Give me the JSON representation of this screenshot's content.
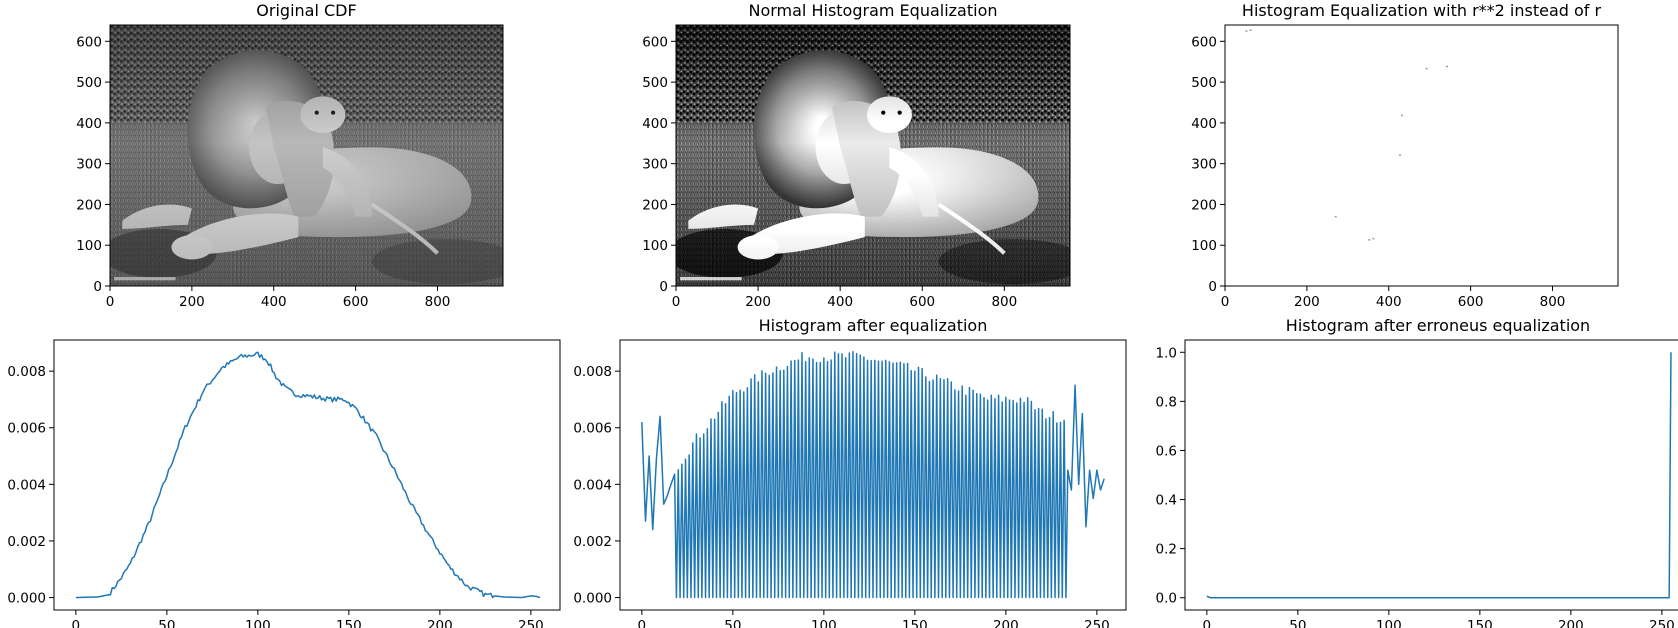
{
  "chart_data": [
    {
      "type": "image",
      "title": "Original CDF",
      "content": "grayscale photograph of a lion and a lion cub",
      "image_tone": "normal",
      "xlim": [
        0,
        960
      ],
      "ylim": [
        640,
        0
      ],
      "xticks": [
        0,
        200,
        400,
        600,
        800
      ],
      "yticks": [
        0,
        100,
        200,
        300,
        400,
        500,
        600
      ]
    },
    {
      "type": "image",
      "title": "Normal Histogram Equalization",
      "content": "contrast-enhanced grayscale photograph of a lion and a lion cub",
      "image_tone": "equalized",
      "xlim": [
        0,
        960
      ],
      "ylim": [
        640,
        0
      ],
      "xticks": [
        0,
        200,
        400,
        600,
        800
      ],
      "yticks": [
        0,
        100,
        200,
        300,
        400,
        500,
        600
      ]
    },
    {
      "type": "image",
      "title": "Histogram Equalization with r**2 instead of r",
      "content": "almost entirely white image with a few faint dark specks",
      "image_tone": "washed-out",
      "xlim": [
        0,
        960
      ],
      "ylim": [
        640,
        0
      ],
      "xticks": [
        0,
        200,
        400,
        600,
        800
      ],
      "yticks": [
        0,
        100,
        200,
        300,
        400,
        500,
        600
      ],
      "specks": [
        [
          50,
          627
        ],
        [
          60,
          629
        ],
        [
          268,
          172
        ],
        [
          350,
          115
        ],
        [
          360,
          118
        ],
        [
          425,
          323
        ],
        [
          430,
          420
        ],
        [
          490,
          535
        ],
        [
          540,
          540
        ]
      ]
    },
    {
      "type": "line",
      "title": "",
      "color": "#1f77b4",
      "xlim": [
        -12,
        266
      ],
      "ylim": [
        -0.00044,
        0.0091
      ],
      "xticks": [
        0,
        50,
        100,
        150,
        200,
        250
      ],
      "yticks": [
        0.0,
        0.002,
        0.004,
        0.006,
        0.008
      ],
      "ytick_labels": [
        "0.000",
        "0.002",
        "0.004",
        "0.006",
        "0.008"
      ],
      "x_range": [
        0,
        255
      ],
      "control_points": [
        [
          0,
          0.0
        ],
        [
          12,
          2e-05
        ],
        [
          18,
          0.0001
        ],
        [
          25,
          0.0007
        ],
        [
          30,
          0.0012
        ],
        [
          40,
          0.0026
        ],
        [
          50,
          0.0043
        ],
        [
          60,
          0.006
        ],
        [
          70,
          0.0073
        ],
        [
          80,
          0.0081
        ],
        [
          90,
          0.0085
        ],
        [
          100,
          0.0086
        ],
        [
          105,
          0.0084
        ],
        [
          110,
          0.0078
        ],
        [
          115,
          0.0074
        ],
        [
          120,
          0.0072
        ],
        [
          130,
          0.0071
        ],
        [
          140,
          0.007
        ],
        [
          148,
          0.007
        ],
        [
          155,
          0.0066
        ],
        [
          165,
          0.0057
        ],
        [
          175,
          0.0045
        ],
        [
          185,
          0.0032
        ],
        [
          195,
          0.0021
        ],
        [
          205,
          0.0011
        ],
        [
          215,
          0.0004
        ],
        [
          225,
          0.0001
        ],
        [
          235,
          2e-05
        ],
        [
          245,
          0.0
        ],
        [
          250,
          6e-05
        ],
        [
          253,
          4e-05
        ],
        [
          255,
          0.0
        ]
      ],
      "noise": 9e-05
    },
    {
      "type": "line",
      "title": "Histogram after equalization",
      "color": "#1f77b4",
      "xlim": [
        -12,
        266
      ],
      "ylim": [
        -0.00044,
        0.0091
      ],
      "xticks": [
        0,
        50,
        100,
        150,
        200,
        250
      ],
      "yticks": [
        0.0,
        0.002,
        0.004,
        0.006,
        0.008
      ],
      "ytick_labels": [
        "0.000",
        "0.002",
        "0.004",
        "0.006",
        "0.008"
      ],
      "leading_values": [
        [
          0,
          0.0062
        ],
        [
          2,
          0.0027
        ],
        [
          4,
          0.005
        ],
        [
          6,
          0.0024
        ],
        [
          8,
          0.0049
        ],
        [
          10,
          0.0064
        ],
        [
          12,
          0.0033
        ],
        [
          14,
          0.0036
        ],
        [
          16,
          0.004
        ]
      ],
      "comb_start": 18,
      "comb_end": 232,
      "comb_step": 2,
      "comb_peaks": [
        [
          18,
          0.0045
        ],
        [
          30,
          0.0056
        ],
        [
          50,
          0.0072
        ],
        [
          70,
          0.008
        ],
        [
          90,
          0.0085
        ],
        [
          100,
          0.0085
        ],
        [
          120,
          0.0085
        ],
        [
          140,
          0.0082
        ],
        [
          150,
          0.008
        ],
        [
          170,
          0.0075
        ],
        [
          190,
          0.007
        ],
        [
          210,
          0.007
        ],
        [
          220,
          0.0065
        ],
        [
          232,
          0.0063
        ]
      ],
      "trailing_values": [
        [
          234,
          0.0045
        ],
        [
          236,
          0.0038
        ],
        [
          238,
          0.0075
        ],
        [
          240,
          0.004
        ],
        [
          242,
          0.0065
        ],
        [
          244,
          0.0025
        ],
        [
          246,
          0.0045
        ],
        [
          248,
          0.0035
        ],
        [
          250,
          0.0045
        ],
        [
          252,
          0.0038
        ],
        [
          254,
          0.0042
        ]
      ]
    },
    {
      "type": "line",
      "title": "Histogram after erroneus equalization",
      "color": "#1f77b4",
      "xlim": [
        -12,
        266
      ],
      "ylim": [
        -0.05,
        1.05
      ],
      "xticks": [
        0,
        50,
        100,
        150,
        200,
        250
      ],
      "yticks": [
        0.0,
        0.2,
        0.4,
        0.6,
        0.8,
        1.0
      ],
      "ytick_labels": [
        "0.0",
        "0.2",
        "0.4",
        "0.6",
        "0.8",
        "1.0"
      ],
      "values": [
        [
          0,
          0.006
        ],
        [
          2,
          0.0
        ],
        [
          253,
          0.0
        ],
        [
          254,
          0.0
        ],
        [
          255,
          1.0
        ]
      ]
    }
  ]
}
